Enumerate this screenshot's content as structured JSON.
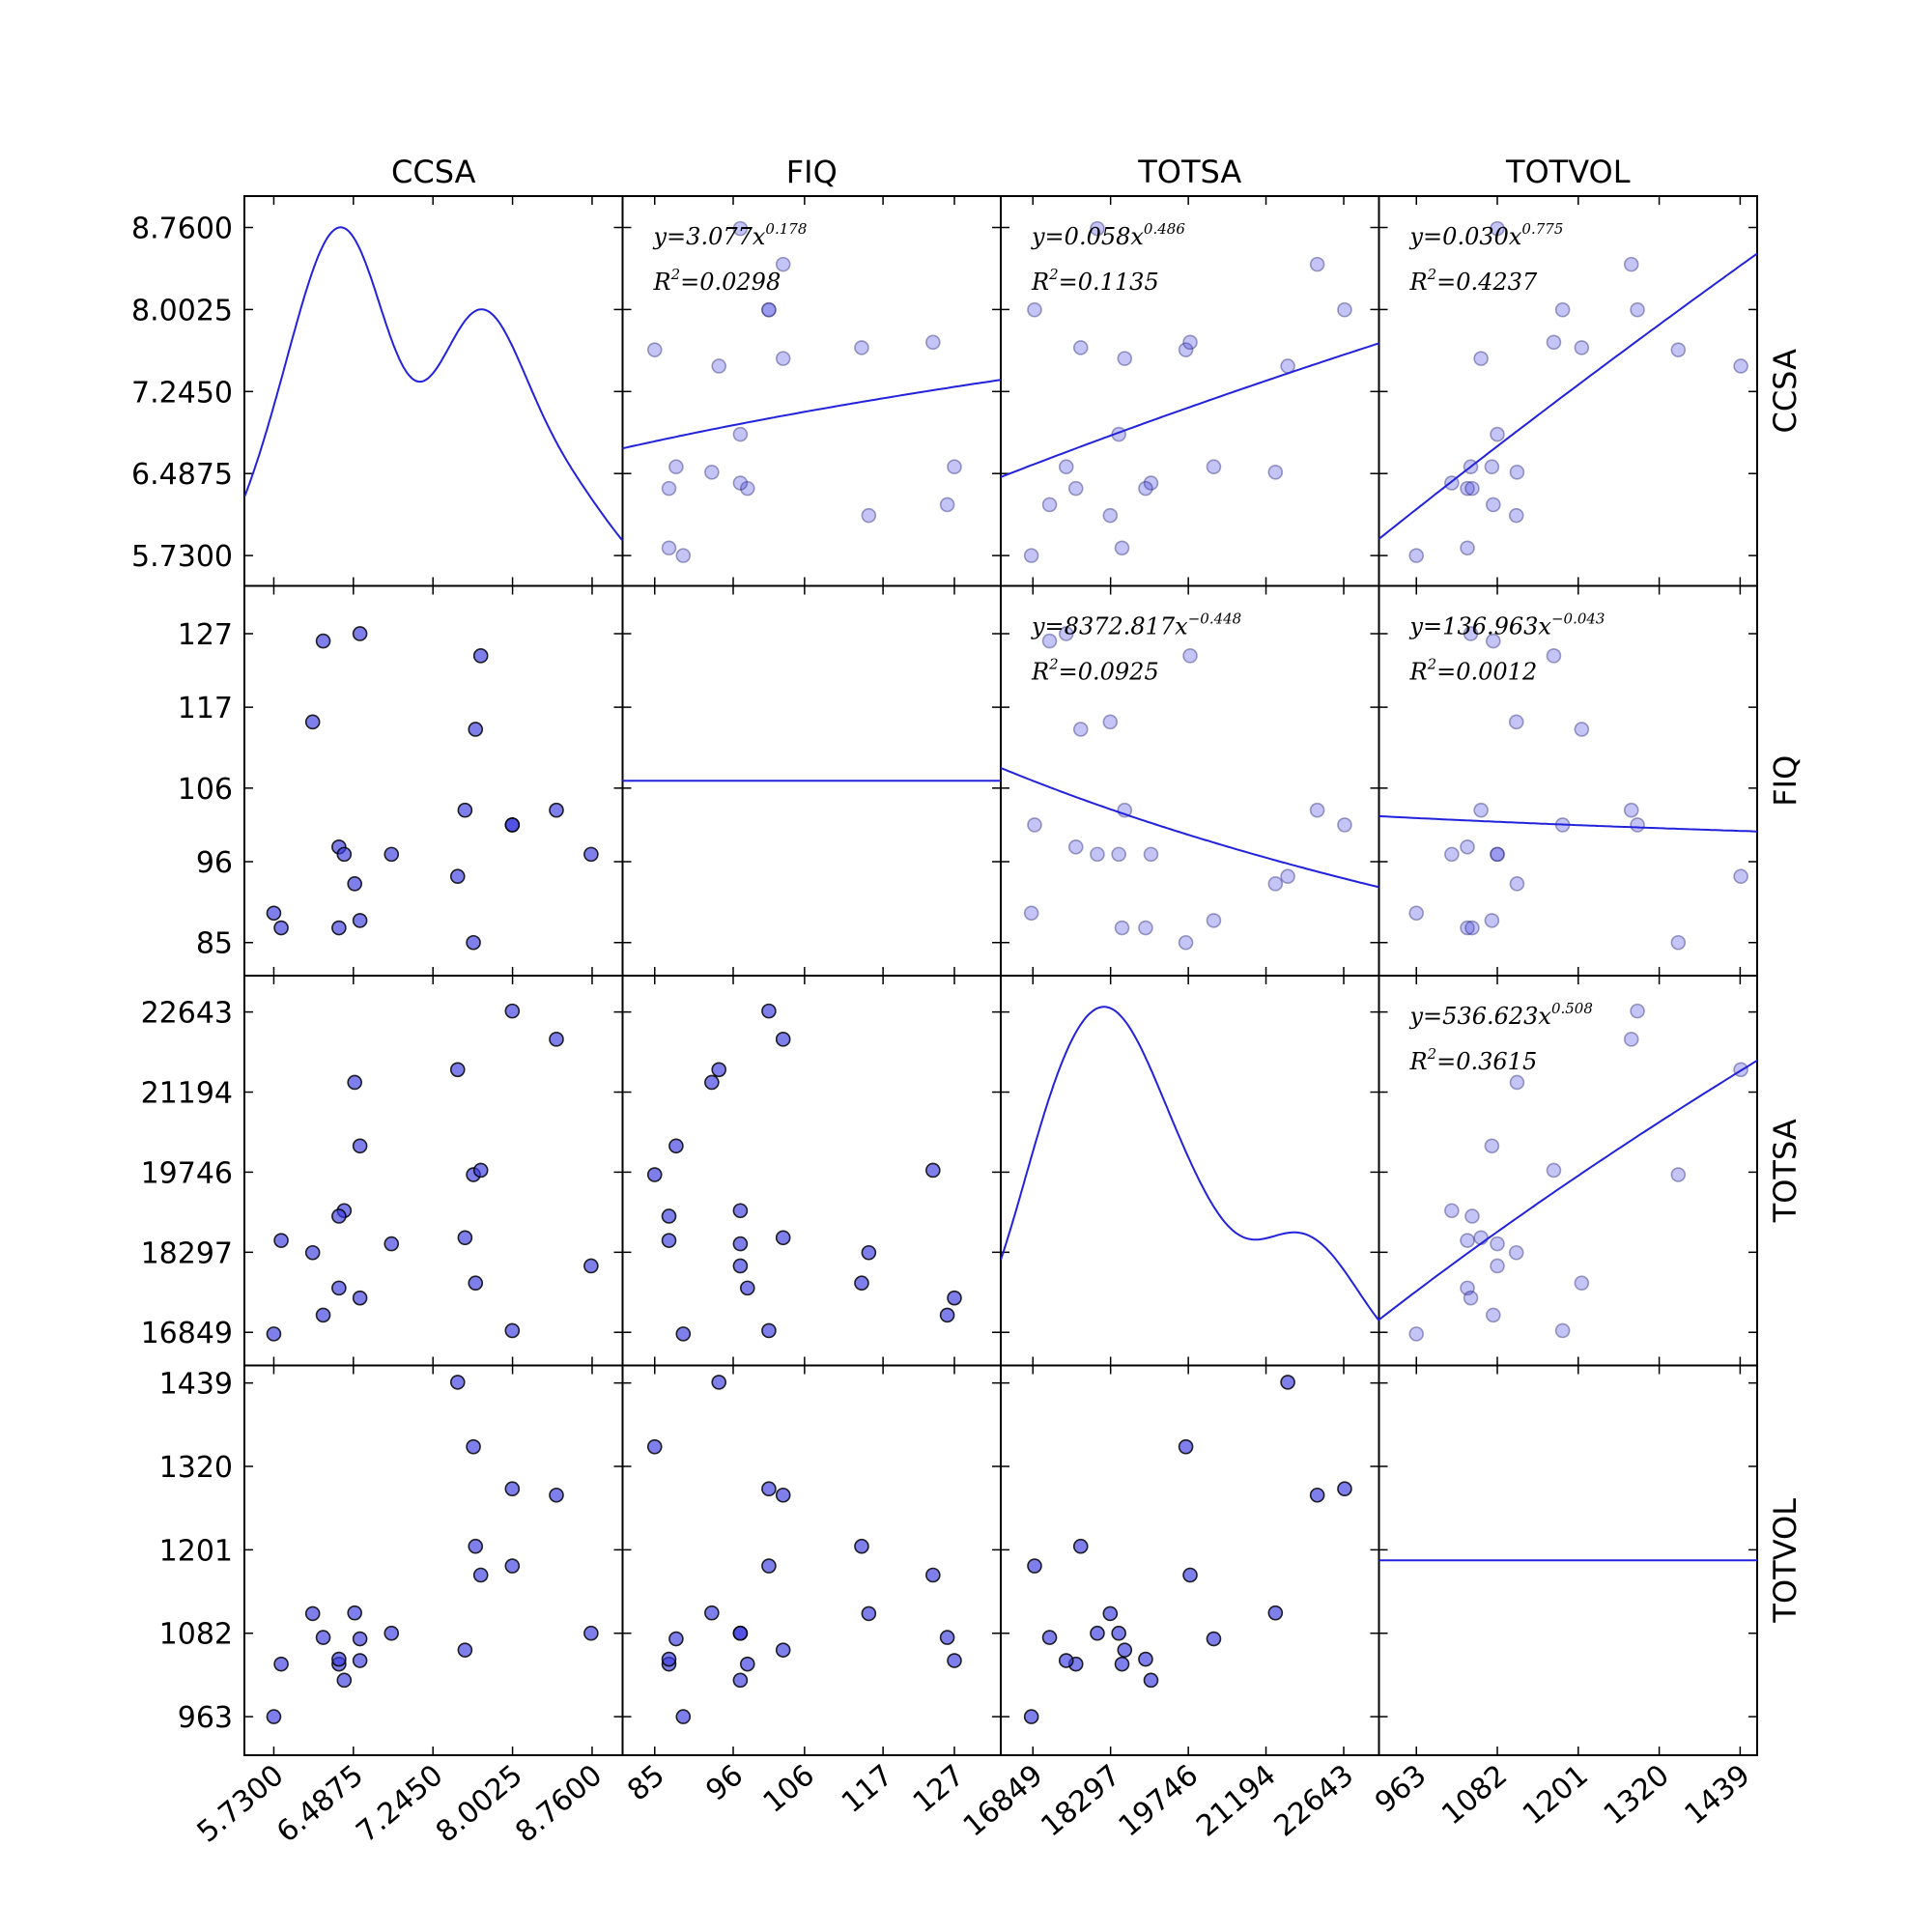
{
  "chart_data": {
    "type": "scatter",
    "variables": [
      "CCSA",
      "FIQ",
      "TOTSA",
      "TOTVOL"
    ],
    "ticks": {
      "CCSA": [
        "5.7300",
        "6.4875",
        "7.2450",
        "8.0025",
        "8.7600"
      ],
      "FIQ": [
        "85",
        "96",
        "106",
        "117",
        "127"
      ],
      "TOTSA": [
        "16849",
        "18297",
        "19746",
        "21194",
        "22643"
      ],
      "TOTVOL": [
        "963",
        "1082",
        "1201",
        "1320",
        "1439"
      ]
    },
    "ranges": {
      "CCSA": [
        5.45,
        9.05
      ],
      "FIQ": [
        80.5,
        133.5
      ],
      "TOTSA": [
        16250,
        23300
      ],
      "TOTVOL": [
        908,
        1464
      ]
    },
    "points": {
      "CCSA": [
        5.73,
        5.8,
        6.35,
        6.4,
        6.5,
        6.55,
        6.55,
        6.2,
        6.1,
        6.85,
        6.35,
        7.55,
        7.65,
        7.48,
        7.63,
        7.7,
        8.0,
        8.42,
        8.0,
        8.75
      ],
      "FIQ": [
        89,
        87,
        98,
        97,
        93,
        88,
        127,
        126,
        115,
        97,
        87,
        103,
        114,
        94,
        85,
        124,
        101,
        103,
        101,
        97
      ],
      "TOTSA": [
        16820,
        18510,
        17650,
        19050,
        21370,
        20220,
        17470,
        17160,
        18290,
        18450,
        18950,
        18560,
        17740,
        21600,
        19700,
        19780,
        16880,
        22150,
        22660,
        18050
      ],
      "TOTVOL": [
        963,
        1038,
        1038,
        1015,
        1111,
        1074,
        1043,
        1076,
        1110,
        1082,
        1045,
        1058,
        1206,
        1440,
        1348,
        1165,
        1178,
        1279,
        1288,
        1082
      ]
    },
    "fits": {
      "CCSA|FIQ": "y=3.077x^0.178 R²=0.0298",
      "CCSA|TOTSA": "y=0.058x^0.486 R²=0.1135",
      "CCSA|TOTVOL": "y=0.030x^0.775 R²=0.4237",
      "FIQ|TOTSA": "y=8372.817x^-0.448 R²=0.0925",
      "FIQ|TOTVOL": "y=136.963x^-0.043 R²=0.0012",
      "TOTSA|TOTVOL": "y=536.623x^0.508 R²=0.3615"
    },
    "annotations": [
      {
        "row": 0,
        "col": 1,
        "coef": "3.077",
        "exp": "0.178",
        "r2": "0.0298",
        "a": 3.077,
        "b": 0.178
      },
      {
        "row": 0,
        "col": 2,
        "coef": "0.058",
        "exp": "0.486",
        "r2": "0.1135",
        "a": 0.058,
        "b": 0.486
      },
      {
        "row": 0,
        "col": 3,
        "coef": "0.030",
        "exp": "0.775",
        "r2": "0.4237",
        "a": 0.03,
        "b": 0.775
      },
      {
        "row": 1,
        "col": 2,
        "coef": "8372.817",
        "exp": "−0.448",
        "r2": "0.0925",
        "a": 8372.817,
        "b": -0.448
      },
      {
        "row": 1,
        "col": 3,
        "coef": "136.963",
        "exp": "−0.043",
        "r2": "0.0012",
        "a": 136.963,
        "b": -0.043
      },
      {
        "row": 2,
        "col": 3,
        "coef": "536.623",
        "exp": "0.508",
        "r2": "0.3615",
        "a": 536.623,
        "b": 0.508
      }
    ],
    "diagonal": {
      "CCSA": "density",
      "FIQ": "flat",
      "TOTSA": "density",
      "TOTVOL": "flat"
    },
    "legend": "none",
    "grid": false,
    "colors": {
      "point_fill": "#3a3ae0",
      "line": "#2222dd",
      "frame": "#000000"
    }
  }
}
